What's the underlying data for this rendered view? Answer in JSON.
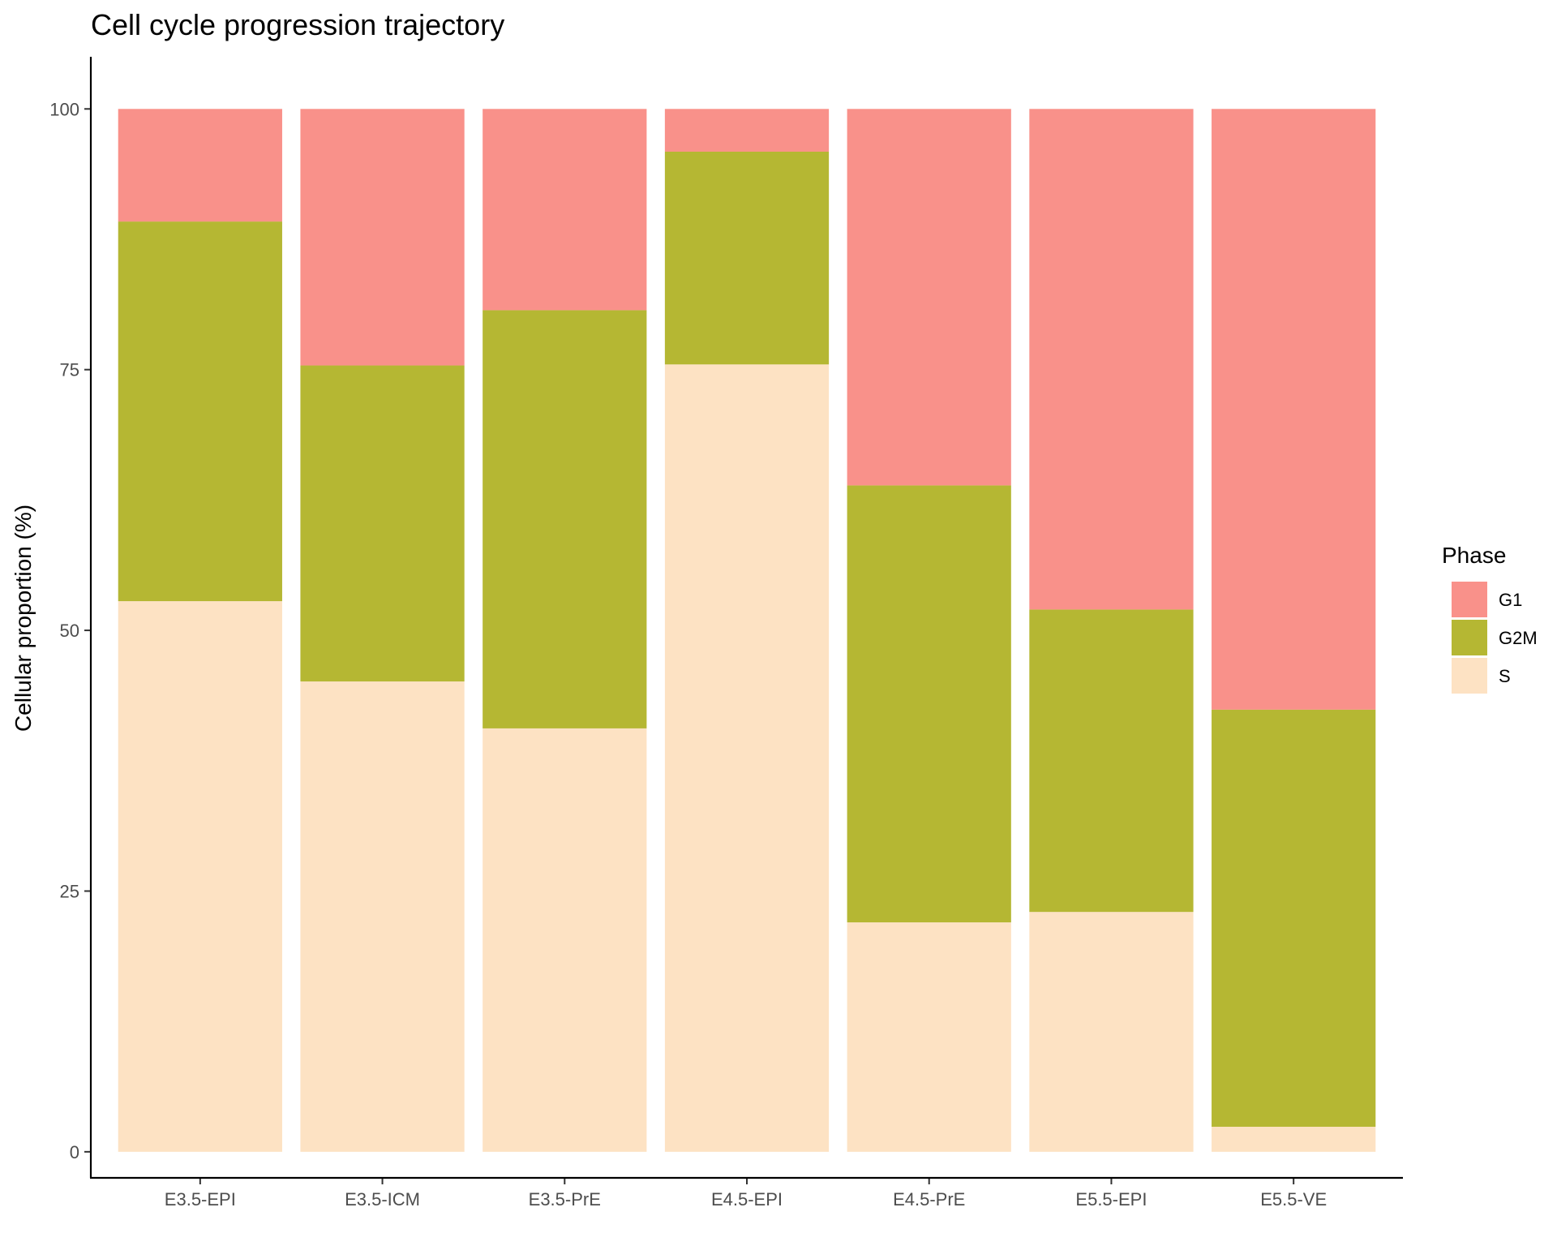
{
  "chart_data": {
    "type": "bar",
    "stacked": true,
    "title": "Cell cycle progression trajectory",
    "xlabel": "",
    "ylabel": "Cellular proportion (%)",
    "ylim": [
      -2.5,
      105
    ],
    "yticks": [
      0,
      25,
      50,
      75,
      100
    ],
    "grid": false,
    "legend": {
      "title": "Phase",
      "placement": "right"
    },
    "categories": [
      "E3.5-EPI",
      "E3.5-ICM",
      "E3.5-PrE",
      "E4.5-EPI",
      "E4.5-PrE",
      "E5.5-EPI",
      "E5.5-VE"
    ],
    "series": [
      {
        "name": "G1",
        "color": "#F8766D",
        "values": [
          10.8,
          24.6,
          19.3,
          4.1,
          36.1,
          48.0,
          57.6
        ]
      },
      {
        "name": "G2M",
        "color": "#A3A500",
        "values": [
          36.4,
          30.3,
          40.1,
          20.4,
          41.9,
          29.0,
          40.0
        ]
      },
      {
        "name": "S",
        "color": "#FDDBB4",
        "values": [
          52.8,
          45.1,
          40.6,
          75.5,
          22.0,
          23.0,
          2.4
        ]
      }
    ],
    "fill_alpha": 0.8
  }
}
